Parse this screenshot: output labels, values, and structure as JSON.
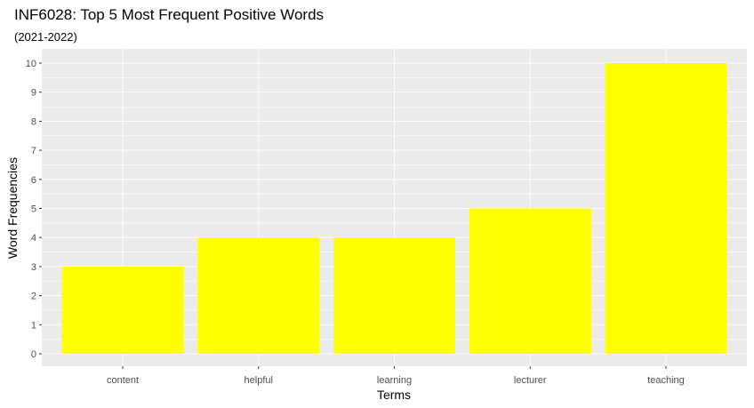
{
  "chart_data": {
    "type": "bar",
    "title": "INF6028: Top 5 Most Frequent Positive Words",
    "subtitle": "(2021-2022)",
    "xlabel": "Terms",
    "ylabel": "Word Frequencies",
    "categories": [
      "content",
      "helpful",
      "learning",
      "lecturer",
      "teaching"
    ],
    "values": [
      3,
      4,
      4,
      5,
      10
    ],
    "ylim": [
      0,
      10
    ],
    "yticks": [
      "0",
      "1",
      "2",
      "3",
      "4",
      "5",
      "6",
      "7",
      "8",
      "9",
      "10"
    ],
    "grid": true,
    "legend": "none",
    "colors": {
      "bar": "#ffff00",
      "panel": "#ebebeb",
      "grid": "#ffffff"
    }
  }
}
